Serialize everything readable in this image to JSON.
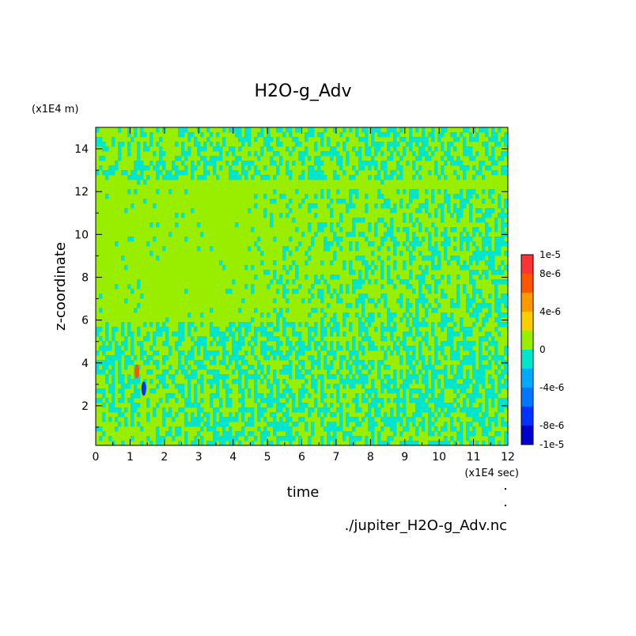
{
  "chart_data": {
    "type": "heatmap",
    "title": "H2O-g_Adv",
    "xlabel": "time",
    "ylabel": "z-coordinate",
    "x_unit": "(x1E4 sec)",
    "y_unit": "(x1E4 m)",
    "xlim": [
      0,
      12
    ],
    "ylim": [
      0.15,
      15
    ],
    "x_ticks": [
      "0",
      "1",
      "2",
      "3",
      "4",
      "5",
      "6",
      "7",
      "8",
      "9",
      "10",
      "11",
      "12"
    ],
    "y_ticks": [
      "2",
      "4",
      "6",
      "8",
      "10",
      "12",
      "14"
    ],
    "y_tick_values": [
      2,
      4,
      6,
      8,
      10,
      12,
      14
    ],
    "colorbar": {
      "labels": [
        "1e-5",
        "8e-6",
        "4e-6",
        "0",
        "-4e-6",
        "-8e-6",
        "-1e-5"
      ],
      "label_values": [
        1e-05,
        8e-06,
        4e-06,
        0,
        -4e-06,
        -8e-06,
        -1e-05
      ],
      "levels": [
        -1e-05,
        -8e-06,
        -6e-06,
        -4e-06,
        -2e-06,
        0,
        2e-06,
        4e-06,
        6e-06,
        8e-06,
        1e-05
      ],
      "colors": [
        "#0000cd",
        "#0033ff",
        "#0077ff",
        "#00aaff",
        "#00e5cc",
        "#99ee00",
        "#ffcc00",
        "#ff9900",
        "#ff5500",
        "#ff3333"
      ]
    },
    "regions": [
      {
        "x": [
          0,
          12
        ],
        "y": [
          12.2,
          12.6
        ],
        "value": 1e-06
      },
      {
        "x": [
          0,
          4.5
        ],
        "y": [
          6,
          12
        ],
        "value": 1e-06
      },
      {
        "x": [
          0,
          12
        ],
        "y": [
          2.3,
          6
        ],
        "value": -1e-06
      },
      {
        "x": [
          0,
          12
        ],
        "y": [
          12.6,
          15
        ],
        "value": -1e-06
      }
    ],
    "annotations": [
      {
        "x": 1.2,
        "y": 3.6,
        "value": 6e-06
      },
      {
        "x": 1.4,
        "y": 2.8,
        "value": -7e-06
      }
    ]
  },
  "footer": {
    "filename": "./jupiter_H2O-g_Adv.nc"
  }
}
